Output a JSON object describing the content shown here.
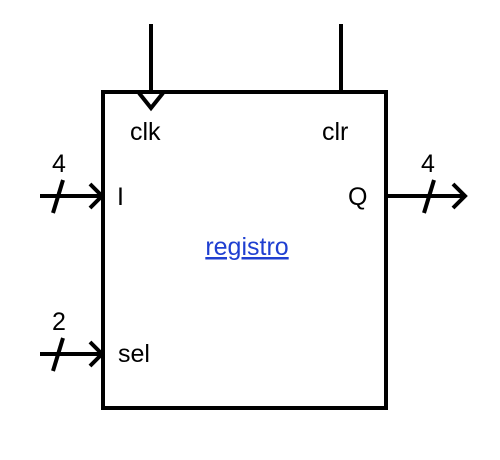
{
  "component": {
    "name": "registro",
    "link_color": "#1f3fd1"
  },
  "ports": {
    "clk": "clk",
    "clr": "clr",
    "input": "I",
    "output": "Q",
    "select": "sel"
  },
  "bus_widths": {
    "input": "4",
    "output": "4",
    "select": "2"
  }
}
